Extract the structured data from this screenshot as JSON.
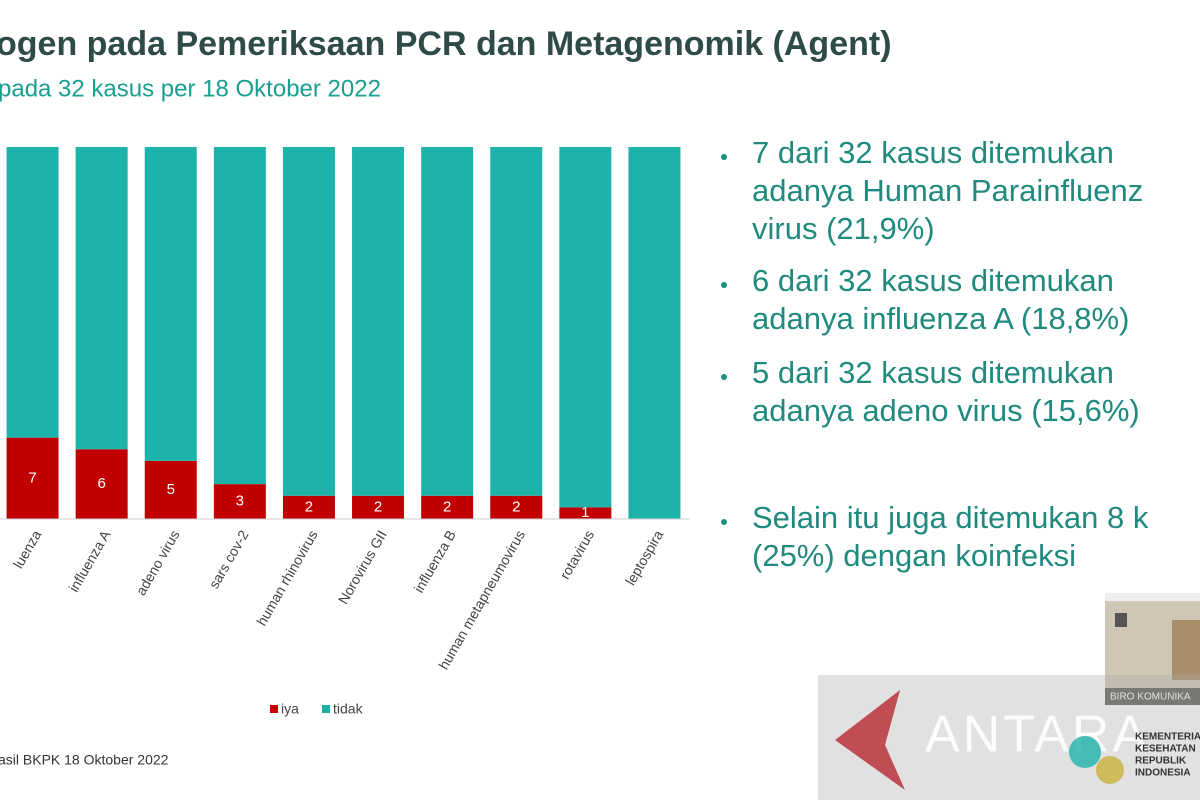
{
  "chart_data": {
    "type": "bar",
    "stacked": true,
    "title": "ogen pada Pemeriksaan  PCR dan Metagenomik (Agent)",
    "subtitle": "pada 32 kasus per 18 Oktober 2022",
    "categories": [
      "luenza",
      "influenza A",
      "adeno virus",
      "sars cov-2",
      "human rhinovirus",
      "Norovirus GII",
      "influenza B",
      "human metapneumovirus",
      "rotavirus",
      "leptospira"
    ],
    "series": [
      {
        "name": "iya",
        "color": "#c00000",
        "values": [
          7,
          6,
          5,
          3,
          2,
          2,
          2,
          2,
          1,
          0
        ]
      },
      {
        "name": "tidak",
        "color": "#1db3aa",
        "values": [
          25,
          26,
          27,
          29,
          30,
          30,
          30,
          30,
          31,
          32
        ]
      }
    ],
    "legend": "bottom",
    "source": "asil BKPK 18 Oktober 2022"
  },
  "bullets": [
    [
      "7 dari 32 kasus ditemukan",
      "adanya Human Parainfluenz",
      "virus (21,9%)"
    ],
    [
      "6 dari 32 kasus ditemukan",
      "adanya influenza A (18,8%)"
    ],
    [
      "5 dari 32 kasus ditemukan",
      "adanya adeno virus (15,6%)"
    ],
    [
      "Selain itu juga ditemukan 8 k",
      "(25%) dengan koinfeksi"
    ]
  ],
  "overlay": {
    "watermark": "ANTARA",
    "camera_caption": "BIRO KOMUNIKA",
    "logo": [
      "KEMENTERIA",
      "KESEHATAN",
      "REPUBLIK",
      "INDONESIA"
    ]
  }
}
